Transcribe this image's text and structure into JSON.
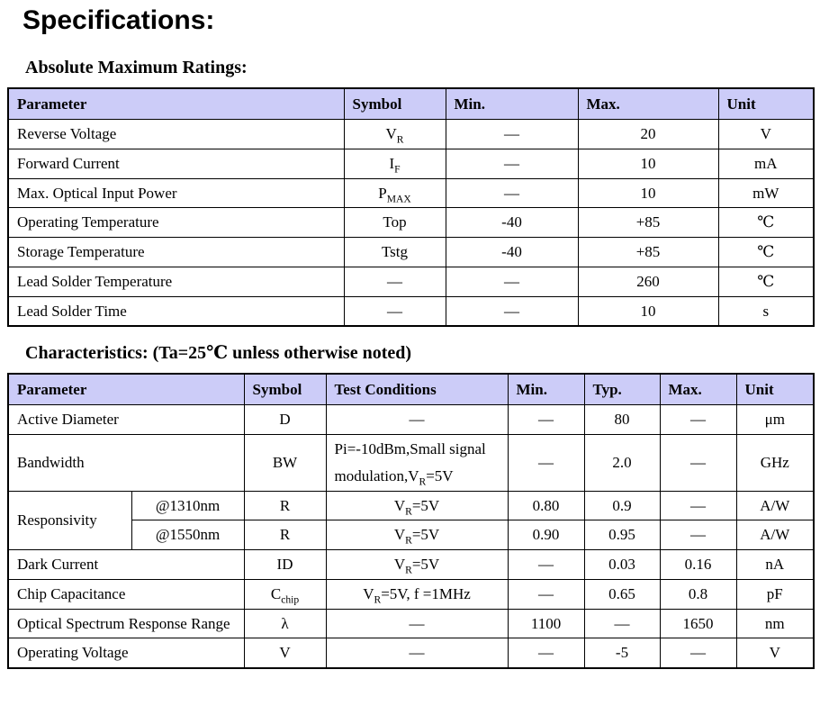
{
  "page": {
    "title": "Specifications:"
  },
  "colors": {
    "header_bg": "#ccccf8",
    "border": "#000000",
    "text": "#000000"
  },
  "tables": {
    "abs_max": {
      "heading": "Absolute Maximum Ratings:",
      "columns": [
        "Parameter",
        "Symbol",
        "Min.",
        "Max.",
        "Unit"
      ],
      "rows": [
        [
          {
            "t": "Reverse Voltage",
            "align": "left"
          },
          {
            "t": "V~R~"
          },
          {
            "t": "—"
          },
          {
            "t": "20"
          },
          {
            "t": "V"
          }
        ],
        [
          {
            "t": "Forward Current",
            "align": "left"
          },
          {
            "t": "I~F~"
          },
          {
            "t": "—"
          },
          {
            "t": "10"
          },
          {
            "t": "mA"
          }
        ],
        [
          {
            "t": "Max. Optical Input Power",
            "align": "left"
          },
          {
            "t": "P~MAX~"
          },
          {
            "t": "—"
          },
          {
            "t": "10"
          },
          {
            "t": "mW"
          }
        ],
        [
          {
            "t": "Operating Temperature",
            "align": "left"
          },
          {
            "t": "Top"
          },
          {
            "t": "-40"
          },
          {
            "t": "+85"
          },
          {
            "t": "℃"
          }
        ],
        [
          {
            "t": "Storage Temperature",
            "align": "left"
          },
          {
            "t": "Tstg"
          },
          {
            "t": "-40"
          },
          {
            "t": "+85"
          },
          {
            "t": "℃"
          }
        ],
        [
          {
            "t": "Lead Solder Temperature",
            "align": "left"
          },
          {
            "t": "—"
          },
          {
            "t": "—"
          },
          {
            "t": "260"
          },
          {
            "t": "℃"
          }
        ],
        [
          {
            "t": "Lead Solder Time",
            "align": "left"
          },
          {
            "t": "—"
          },
          {
            "t": "—"
          },
          {
            "t": "10"
          },
          {
            "t": "s"
          }
        ]
      ]
    },
    "characteristics": {
      "heading": "Characteristics: (Ta=25℃  unless otherwise noted)",
      "columns": [
        {
          "t": "Parameter",
          "colspan": 2
        },
        {
          "t": "Symbol"
        },
        {
          "t": "Test Conditions"
        },
        {
          "t": "Min."
        },
        {
          "t": "Typ."
        },
        {
          "t": "Max."
        },
        {
          "t": "Unit"
        }
      ],
      "rows": [
        [
          {
            "t": "Active Diameter",
            "colspan": 2,
            "align": "left"
          },
          {
            "t": "D"
          },
          {
            "t": "—"
          },
          {
            "t": "—"
          },
          {
            "t": "80"
          },
          {
            "t": "—"
          },
          {
            "t": "μm"
          }
        ],
        [
          {
            "t": "Bandwidth",
            "colspan": 2,
            "align": "left"
          },
          {
            "t": "BW"
          },
          {
            "t": "Pi=-10dBm,Small signal modulation,V~R~=5V",
            "align": "left"
          },
          {
            "t": "—"
          },
          {
            "t": "2.0"
          },
          {
            "t": "—"
          },
          {
            "t": "GHz"
          }
        ],
        [
          {
            "t": "Responsivity",
            "rowspan": 2,
            "align": "left"
          },
          {
            "t": "@1310nm"
          },
          {
            "t": "R"
          },
          {
            "t": "V~R~=5V"
          },
          {
            "t": "0.80"
          },
          {
            "t": "0.9"
          },
          {
            "t": "—"
          },
          {
            "t": "A/W"
          }
        ],
        [
          {
            "t": "@1550nm"
          },
          {
            "t": "R"
          },
          {
            "t": "V~R~=5V"
          },
          {
            "t": "0.90"
          },
          {
            "t": "0.95"
          },
          {
            "t": "—"
          },
          {
            "t": "A/W"
          }
        ],
        [
          {
            "t": "Dark Current",
            "colspan": 2,
            "align": "left"
          },
          {
            "t": "ID"
          },
          {
            "t": "V~R~=5V"
          },
          {
            "t": "—"
          },
          {
            "t": "0.03"
          },
          {
            "t": "0.16"
          },
          {
            "t": "nA"
          }
        ],
        [
          {
            "t": "Chip Capacitance",
            "colspan": 2,
            "align": "left"
          },
          {
            "t": "C~chip~"
          },
          {
            "t": "V~R~=5V, f =1MHz"
          },
          {
            "t": "—"
          },
          {
            "t": "0.65"
          },
          {
            "t": "0.8"
          },
          {
            "t": "pF"
          }
        ],
        [
          {
            "t": "Optical Spectrum Response Range",
            "colspan": 2,
            "align": "justify"
          },
          {
            "t": "λ"
          },
          {
            "t": "—"
          },
          {
            "t": "1100"
          },
          {
            "t": "—"
          },
          {
            "t": "1650"
          },
          {
            "t": "nm"
          }
        ],
        [
          {
            "t": "Operating Voltage",
            "colspan": 2,
            "align": "left"
          },
          {
            "t": "V"
          },
          {
            "t": "—"
          },
          {
            "t": "—"
          },
          {
            "t": "-5"
          },
          {
            "t": "—"
          },
          {
            "t": "V"
          }
        ]
      ]
    }
  }
}
